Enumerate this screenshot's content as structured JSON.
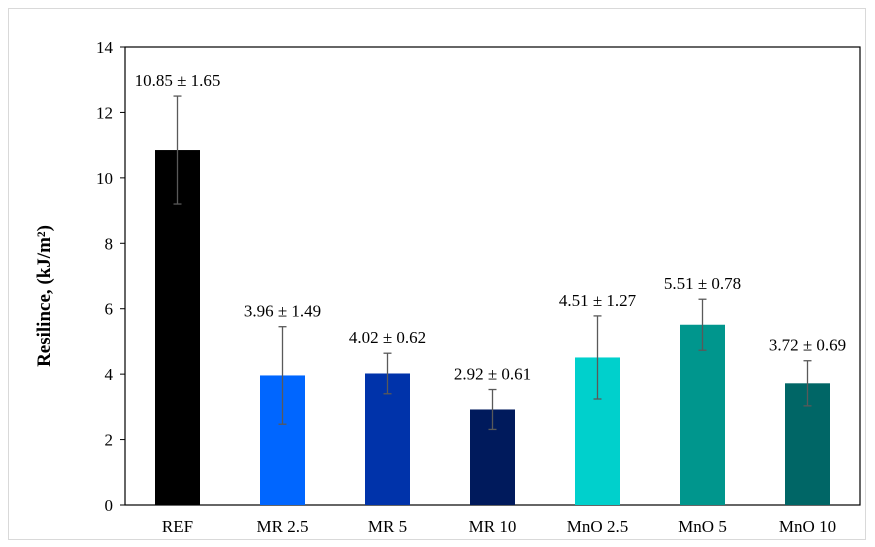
{
  "chart_data": {
    "type": "bar",
    "title": "",
    "xlabel": "",
    "ylabel": "Resilince, (kJ/m²)",
    "ylim": [
      0,
      14
    ],
    "yticks": [
      0,
      2,
      4,
      6,
      8,
      10,
      12,
      14
    ],
    "grid": false,
    "legend": "none",
    "categories": [
      "REF",
      "MR 2.5",
      "MR 5",
      "MR 10",
      "MnO 2.5",
      "MnO 5",
      "MnO 10"
    ],
    "values": [
      10.85,
      3.96,
      4.02,
      2.92,
      4.51,
      5.51,
      3.72
    ],
    "errors": [
      1.65,
      1.49,
      0.62,
      0.61,
      1.27,
      0.78,
      0.69
    ],
    "data_labels": [
      "10.85 ± 1.65",
      "3.96 ± 1.49",
      "4.02 ± 0.62",
      "2.92 ± 0.61",
      "4.51 ± 1.27",
      "5.51 ± 0.78",
      "3.72 ± 0.69"
    ],
    "colors": [
      "#000000",
      "#0066ff",
      "#0033aa",
      "#001a5c",
      "#00d0cc",
      "#00968d",
      "#006666"
    ],
    "error_bar_color": "#595959",
    "axis_color": "#000000"
  }
}
